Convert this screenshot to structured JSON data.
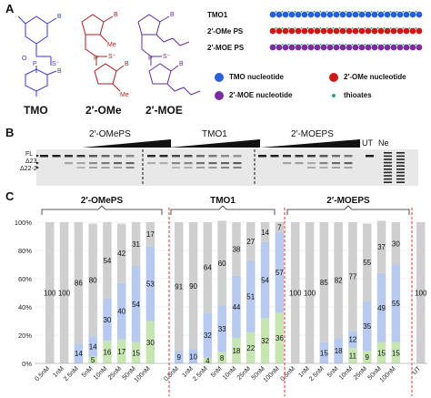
{
  "panels": {
    "a": "A",
    "b": "B",
    "c": "C"
  },
  "structures": {
    "labels": [
      "TMO",
      "2′-OMe",
      "2′-MOE"
    ],
    "colors": [
      "#3a3acc",
      "#a52020",
      "#6a2a9a"
    ],
    "atoms": {
      "base": "B",
      "me": "Me",
      "o": "O",
      "p": "P",
      "s": "S⁻"
    }
  },
  "oligos": {
    "rows": [
      {
        "name": "TMO1",
        "pattern": "blue",
        "count": 24
      },
      {
        "name": "2′-OMe PS",
        "pattern": "red",
        "count": 24
      },
      {
        "name": "2′-MOE PS",
        "pattern": "purple",
        "count": 24
      }
    ],
    "colors": {
      "blue": "#2a5fd6",
      "red": "#cc1a1a",
      "purple": "#7b2e9e",
      "thioate": "#2aa877"
    },
    "legend": [
      {
        "key": "blue",
        "label": "TMO nucleotide"
      },
      {
        "key": "red",
        "label": "2′-OMe nucleotide"
      },
      {
        "key": "purple",
        "label": "2′-MOE nucleotide"
      },
      {
        "key": "thioate",
        "label": "thioates"
      }
    ]
  },
  "gel": {
    "groups": [
      "2′-OMePS",
      "TMO1",
      "2′-MOEPS"
    ],
    "extra_labels": [
      "UT",
      "Ne"
    ],
    "band_labels": [
      "FL",
      "Δ23",
      "Δ22-23"
    ]
  },
  "chart_data": {
    "type": "bar",
    "stacked": true,
    "groups": [
      "2′-OMePS",
      "TMO1",
      "2′-MOEPS"
    ],
    "categories": [
      "0.5nM",
      "1nM",
      "2.5nM",
      "5nM",
      "10nM",
      "25nM",
      "50nM",
      "100nM"
    ],
    "ylim": [
      0,
      100
    ],
    "yticks": [
      "0%",
      "20%",
      "40%",
      "60%",
      "80%",
      "100%"
    ],
    "series_colors": {
      "full": "#cfcfcf",
      "d23": "#b7c9ee",
      "d2223": "#c7e4b3"
    },
    "ut": {
      "label": "UT",
      "value": 100
    },
    "data": [
      {
        "group": "2′-OMePS",
        "full": [
          100,
          100,
          86,
          80,
          54,
          42,
          31,
          17
        ],
        "d23": [
          null,
          null,
          14,
          14,
          30,
          40,
          54,
          53
        ],
        "d2223": [
          null,
          null,
          null,
          5,
          16,
          17,
          15,
          30
        ]
      },
      {
        "group": "TMO1",
        "full": [
          91,
          90,
          64,
          60,
          38,
          27,
          14,
          7
        ],
        "d23": [
          9,
          10,
          32,
          33,
          44,
          51,
          54,
          57
        ],
        "d2223": [
          null,
          null,
          4,
          8,
          18,
          22,
          32,
          36
        ]
      },
      {
        "group": "2′-MOEPS",
        "full": [
          100,
          100,
          85,
          82,
          77,
          55,
          37,
          30
        ],
        "d23": [
          null,
          null,
          15,
          18,
          12,
          35,
          49,
          55
        ],
        "d2223": [
          null,
          null,
          null,
          null,
          11,
          9,
          15,
          15
        ]
      }
    ]
  }
}
